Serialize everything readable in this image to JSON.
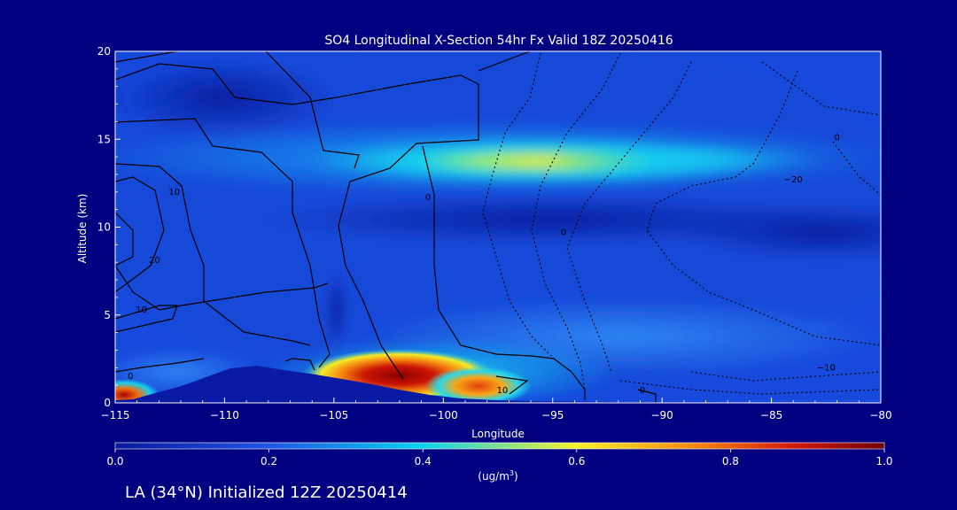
{
  "chart_data": {
    "type": "heatmap",
    "title": "SO4 Longitudinal X-Section 54hr  Fx Valid 18Z 20250416",
    "xlabel": "Longitude",
    "ylabel": "Altitude (km)",
    "xlim": [
      -115,
      -80
    ],
    "ylim": [
      0,
      20
    ],
    "x_ticks": [
      -115,
      -110,
      -105,
      -100,
      -95,
      -90,
      -85,
      -80
    ],
    "y_ticks": [
      0,
      5,
      10,
      15,
      20
    ],
    "colorbar": {
      "label": "(ug/m",
      "label_sup": "3",
      "label_close": ")",
      "range": [
        0.0,
        1.0
      ],
      "ticks": [
        "0.0",
        "0.2",
        "0.4",
        "0.6",
        "0.8",
        "1.0"
      ]
    },
    "contour_labels": [
      {
        "text": "0",
        "x": -114.3,
        "y": 1.5
      },
      {
        "text": "10",
        "x": -113.8,
        "y": 5.3
      },
      {
        "text": "20",
        "x": -113.2,
        "y": 8.1
      },
      {
        "text": "10",
        "x": -112.3,
        "y": 12.0
      },
      {
        "text": "10",
        "x": -97.3,
        "y": 0.7
      },
      {
        "text": "0",
        "x": -100.7,
        "y": 11.7
      },
      {
        "text": "0",
        "x": -94.5,
        "y": 9.7
      },
      {
        "text": "0",
        "x": -90.9,
        "y": 0.7
      },
      {
        "text": "-20",
        "x": -84.0,
        "y": 12.7
      },
      {
        "text": "-10",
        "x": -82.5,
        "y": 2.0
      },
      {
        "text": "0",
        "x": -82.0,
        "y": 15.1
      }
    ],
    "concentration_features": [
      {
        "lon": -96.0,
        "alt": 13.7,
        "value": 0.62
      },
      {
        "lon": -92.0,
        "alt": 13.9,
        "value": 0.45
      },
      {
        "lon": -102.5,
        "alt": 1.5,
        "value": 0.98
      },
      {
        "lon": -98.0,
        "alt": 0.9,
        "value": 0.9
      },
      {
        "lon": -114.5,
        "alt": 0.5,
        "value": 0.85
      },
      {
        "lon": -89.0,
        "alt": 3.2,
        "value": 0.35
      },
      {
        "lon": -110.0,
        "alt": 10.0,
        "value": 0.08
      }
    ]
  },
  "footer": {
    "text": "LA (34°N) Initialized 12Z 20250414"
  }
}
